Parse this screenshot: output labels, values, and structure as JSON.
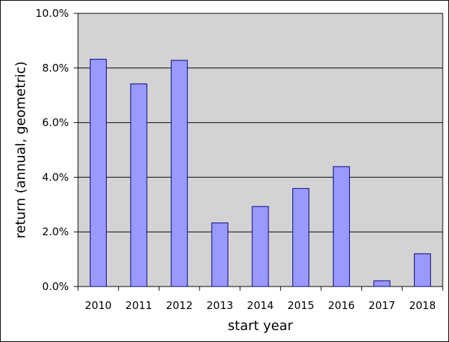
{
  "chart_data": {
    "type": "bar",
    "title": "",
    "xlabel": "start year",
    "ylabel": "return (annual, geometric)",
    "categories": [
      "2010",
      "2011",
      "2012",
      "2013",
      "2014",
      "2015",
      "2016",
      "2017",
      "2018"
    ],
    "values": [
      8.32,
      7.42,
      8.28,
      2.33,
      2.93,
      3.59,
      4.39,
      0.21,
      1.2
    ],
    "ylim": [
      0,
      10
    ],
    "yticks": [
      0,
      2,
      4,
      6,
      8,
      10
    ],
    "ytick_labels": [
      "0.0%",
      "2.0%",
      "4.0%",
      "6.0%",
      "8.0%",
      "10.0%"
    ],
    "grid": true,
    "colors": {
      "bar_fill": "#9999ff",
      "bar_stroke": "#000080",
      "plot_background": "#d3d3d3",
      "gridline": "#000000"
    }
  }
}
